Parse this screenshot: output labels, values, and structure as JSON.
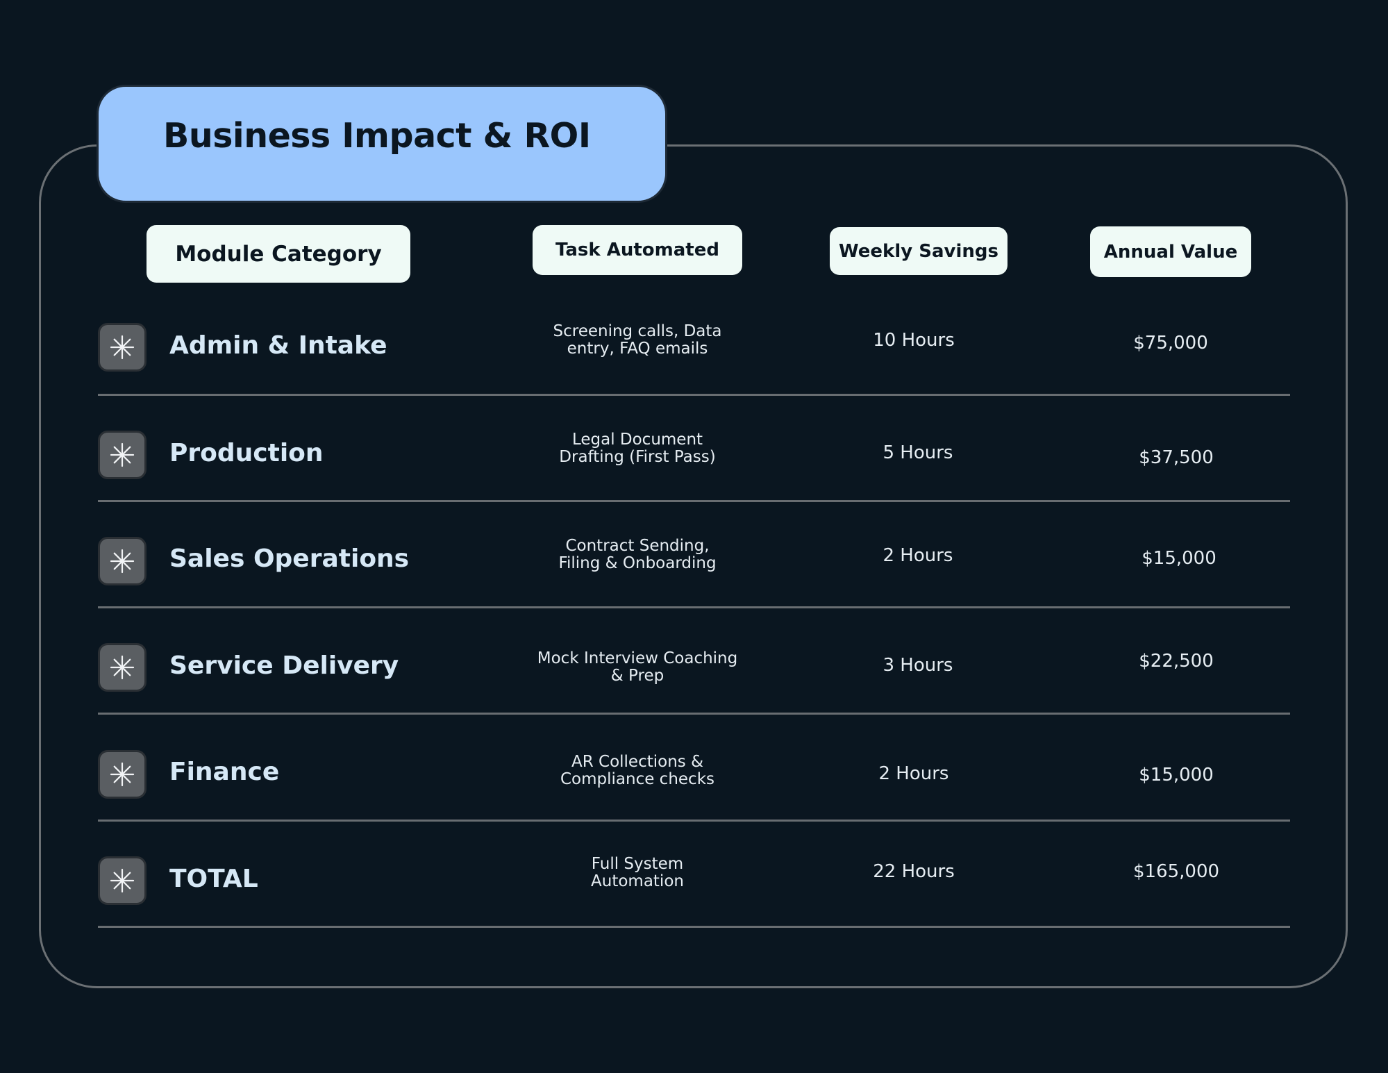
{
  "title": "Business Impact & ROI",
  "headers": {
    "module": "Module Category",
    "task": "Task Automated",
    "weekly": "Weekly Savings",
    "annual": "Annual Value"
  },
  "rows": [
    {
      "icon": "asterisk-icon",
      "category": "Admin & Intake",
      "task_line1": "Screening calls, Data",
      "task_line2": "entry, FAQ emails",
      "weekly": "10 Hours",
      "annual": "$75,000"
    },
    {
      "icon": "asterisk-icon",
      "category": "Production",
      "task_line1": "Legal Document",
      "task_line2": "Drafting (First Pass)",
      "weekly": "5 Hours",
      "annual": "$37,500"
    },
    {
      "icon": "asterisk-icon",
      "category": "Sales Operations",
      "task_line1": "Contract Sending,",
      "task_line2": "Filing & Onboarding",
      "weekly": "2 Hours",
      "annual": "$15,000"
    },
    {
      "icon": "asterisk-icon",
      "category": "Service Delivery",
      "task_line1": "Mock Interview Coaching",
      "task_line2": "& Prep",
      "weekly": "3 Hours",
      "annual": "$22,500"
    },
    {
      "icon": "asterisk-icon",
      "category": "Finance",
      "task_line1": "AR Collections &",
      "task_line2": "Compliance checks",
      "weekly": "2 Hours",
      "annual": "$15,000"
    },
    {
      "icon": "asterisk-icon",
      "category": "TOTAL",
      "task_line1": "Full System",
      "task_line2": "Automation",
      "weekly": "22 Hours",
      "annual": "$165,000"
    }
  ],
  "colors": {
    "background": "#0a1620",
    "title_tab": "#9ac6fd",
    "header_pill": "#effaf6",
    "label_text": "#d6e8f6",
    "divider": "#686d71",
    "icon_tile": "#5a5e62"
  }
}
